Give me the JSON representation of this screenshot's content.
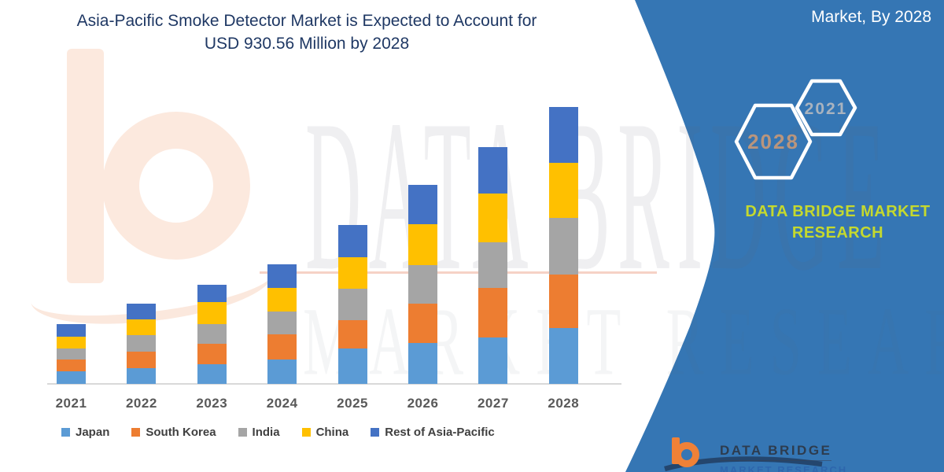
{
  "title": {
    "line1": "Asia-Pacific Smoke Detector Market is Expected to Account for",
    "line2": "USD 930.56 Million by 2028",
    "color": "#1f3864"
  },
  "side_panel": {
    "heading": "Market, By 2028",
    "background_color": "#3576b4",
    "hexagons": [
      {
        "label": "2028",
        "text_color": "#b9957d"
      },
      {
        "label": "2021",
        "text_color": "#a9b3bf"
      }
    ],
    "brand_text": {
      "line1": "DATA BRIDGE MARKET",
      "line2": "RESEARCH",
      "color": "#c5d92e"
    }
  },
  "watermark": {
    "line1": "DATA BRIDGE",
    "line2": "MARKET RESEARCH"
  },
  "footer_logo": {
    "brand": "DATA BRIDGE",
    "sub_brand": "MARKET RESEARCH",
    "b_color": "#ef8137",
    "swoosh_color": "#24466e"
  },
  "chart_data": {
    "type": "bar",
    "stacked": true,
    "unit": "USD Million",
    "title": "Asia-Pacific Smoke Detector Market (USD Million)",
    "categories": [
      "2021",
      "2022",
      "2023",
      "2024",
      "2025",
      "2026",
      "2027",
      "2028"
    ],
    "series": [
      {
        "name": "Japan",
        "color": "#5B9BD5",
        "values": [
          42,
          53,
          65,
          81,
          118,
          137,
          157,
          187
        ]
      },
      {
        "name": "South Korea",
        "color": "#ED7D31",
        "values": [
          41,
          55,
          71,
          87,
          97,
          134,
          165,
          182
        ]
      },
      {
        "name": "India",
        "color": "#A5A5A5",
        "values": [
          35,
          55,
          64,
          75,
          104,
          128,
          154,
          189
        ]
      },
      {
        "name": "China",
        "color": "#FFC000",
        "values": [
          40,
          53,
          75,
          81,
          106,
          137,
          163,
          185
        ]
      },
      {
        "name": "Rest of Asia-Pacific",
        "color": "#4472C4",
        "values": [
          42,
          53,
          57,
          79,
          108,
          132,
          157,
          188
        ]
      }
    ],
    "totals_estimated": [
      200,
      269,
      332,
      403,
      533,
      668,
      796,
      930.56
    ],
    "highlight_total": {
      "year": "2028",
      "value": 930.56
    },
    "values_estimated_from_pixels": true,
    "legend_position": "bottom",
    "gridlines": false,
    "value_axis_visible": false,
    "x_axis_label_color": "#595959"
  }
}
